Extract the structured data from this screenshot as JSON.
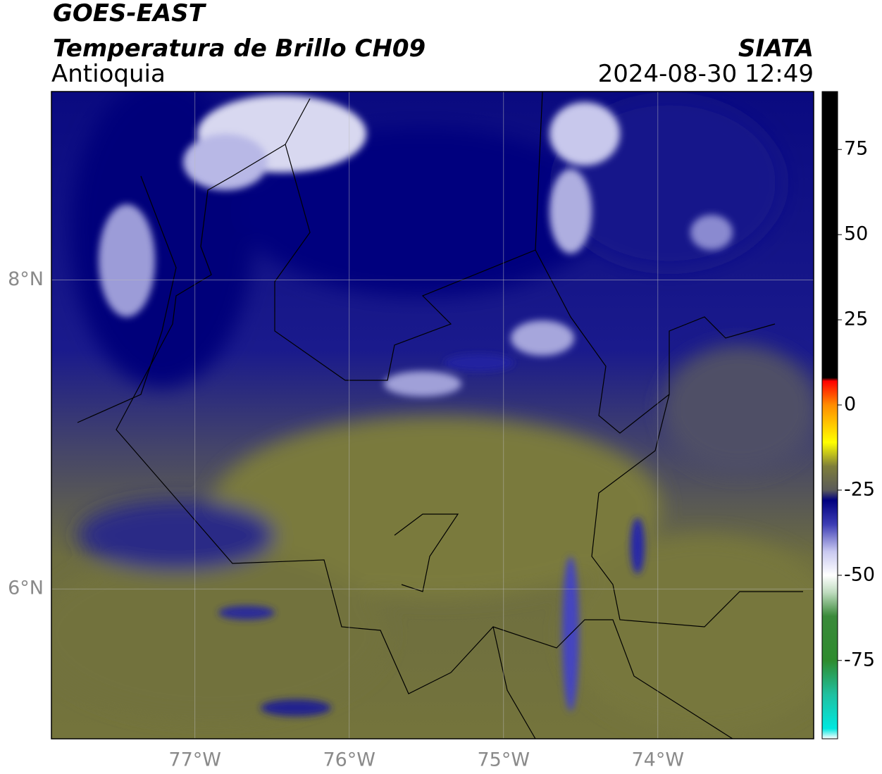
{
  "header": {
    "satellite": "GOES-EAST",
    "product": "Temperatura de Brillo CH09",
    "region": "Antioquia",
    "source": "SIATA",
    "datetime": "2024-08-30 12:49"
  },
  "map": {
    "xlim": [
      -77.93,
      -72.99
    ],
    "ylim": [
      5.03,
      9.22
    ],
    "xticks": [
      {
        "value": -77,
        "label": "77°W"
      },
      {
        "value": -76,
        "label": "76°W"
      },
      {
        "value": -75,
        "label": "75°W"
      },
      {
        "value": -74,
        "label": "74°W"
      }
    ],
    "yticks": [
      {
        "value": 6,
        "label": "6°N"
      },
      {
        "value": 8,
        "label": "8°N"
      }
    ],
    "grid": true
  },
  "colorbar": {
    "lim": [
      -98,
      92
    ],
    "ticks": [
      -75,
      -50,
      -25,
      0,
      25,
      50,
      75
    ],
    "colormap": [
      [
        -98,
        "#ffffff"
      ],
      [
        -95,
        "#00e8e0"
      ],
      [
        -85,
        "#20c0a0"
      ],
      [
        -75,
        "#2e8b2e"
      ],
      [
        -62,
        "#3a8a3a"
      ],
      [
        -55,
        "#c0dcc0"
      ],
      [
        -50,
        "#ffffff"
      ],
      [
        -43,
        "#c8c8f0"
      ],
      [
        -35,
        "#3c3cb4"
      ],
      [
        -28,
        "#00007f"
      ],
      [
        -25,
        "#5a5a5a"
      ],
      [
        -18,
        "#7f7f3a"
      ],
      [
        -11,
        "#ffff00"
      ],
      [
        0,
        "#ff8c00"
      ],
      [
        7,
        "#ff0000"
      ],
      [
        8,
        "#000000"
      ],
      [
        92,
        "#000000"
      ]
    ]
  }
}
